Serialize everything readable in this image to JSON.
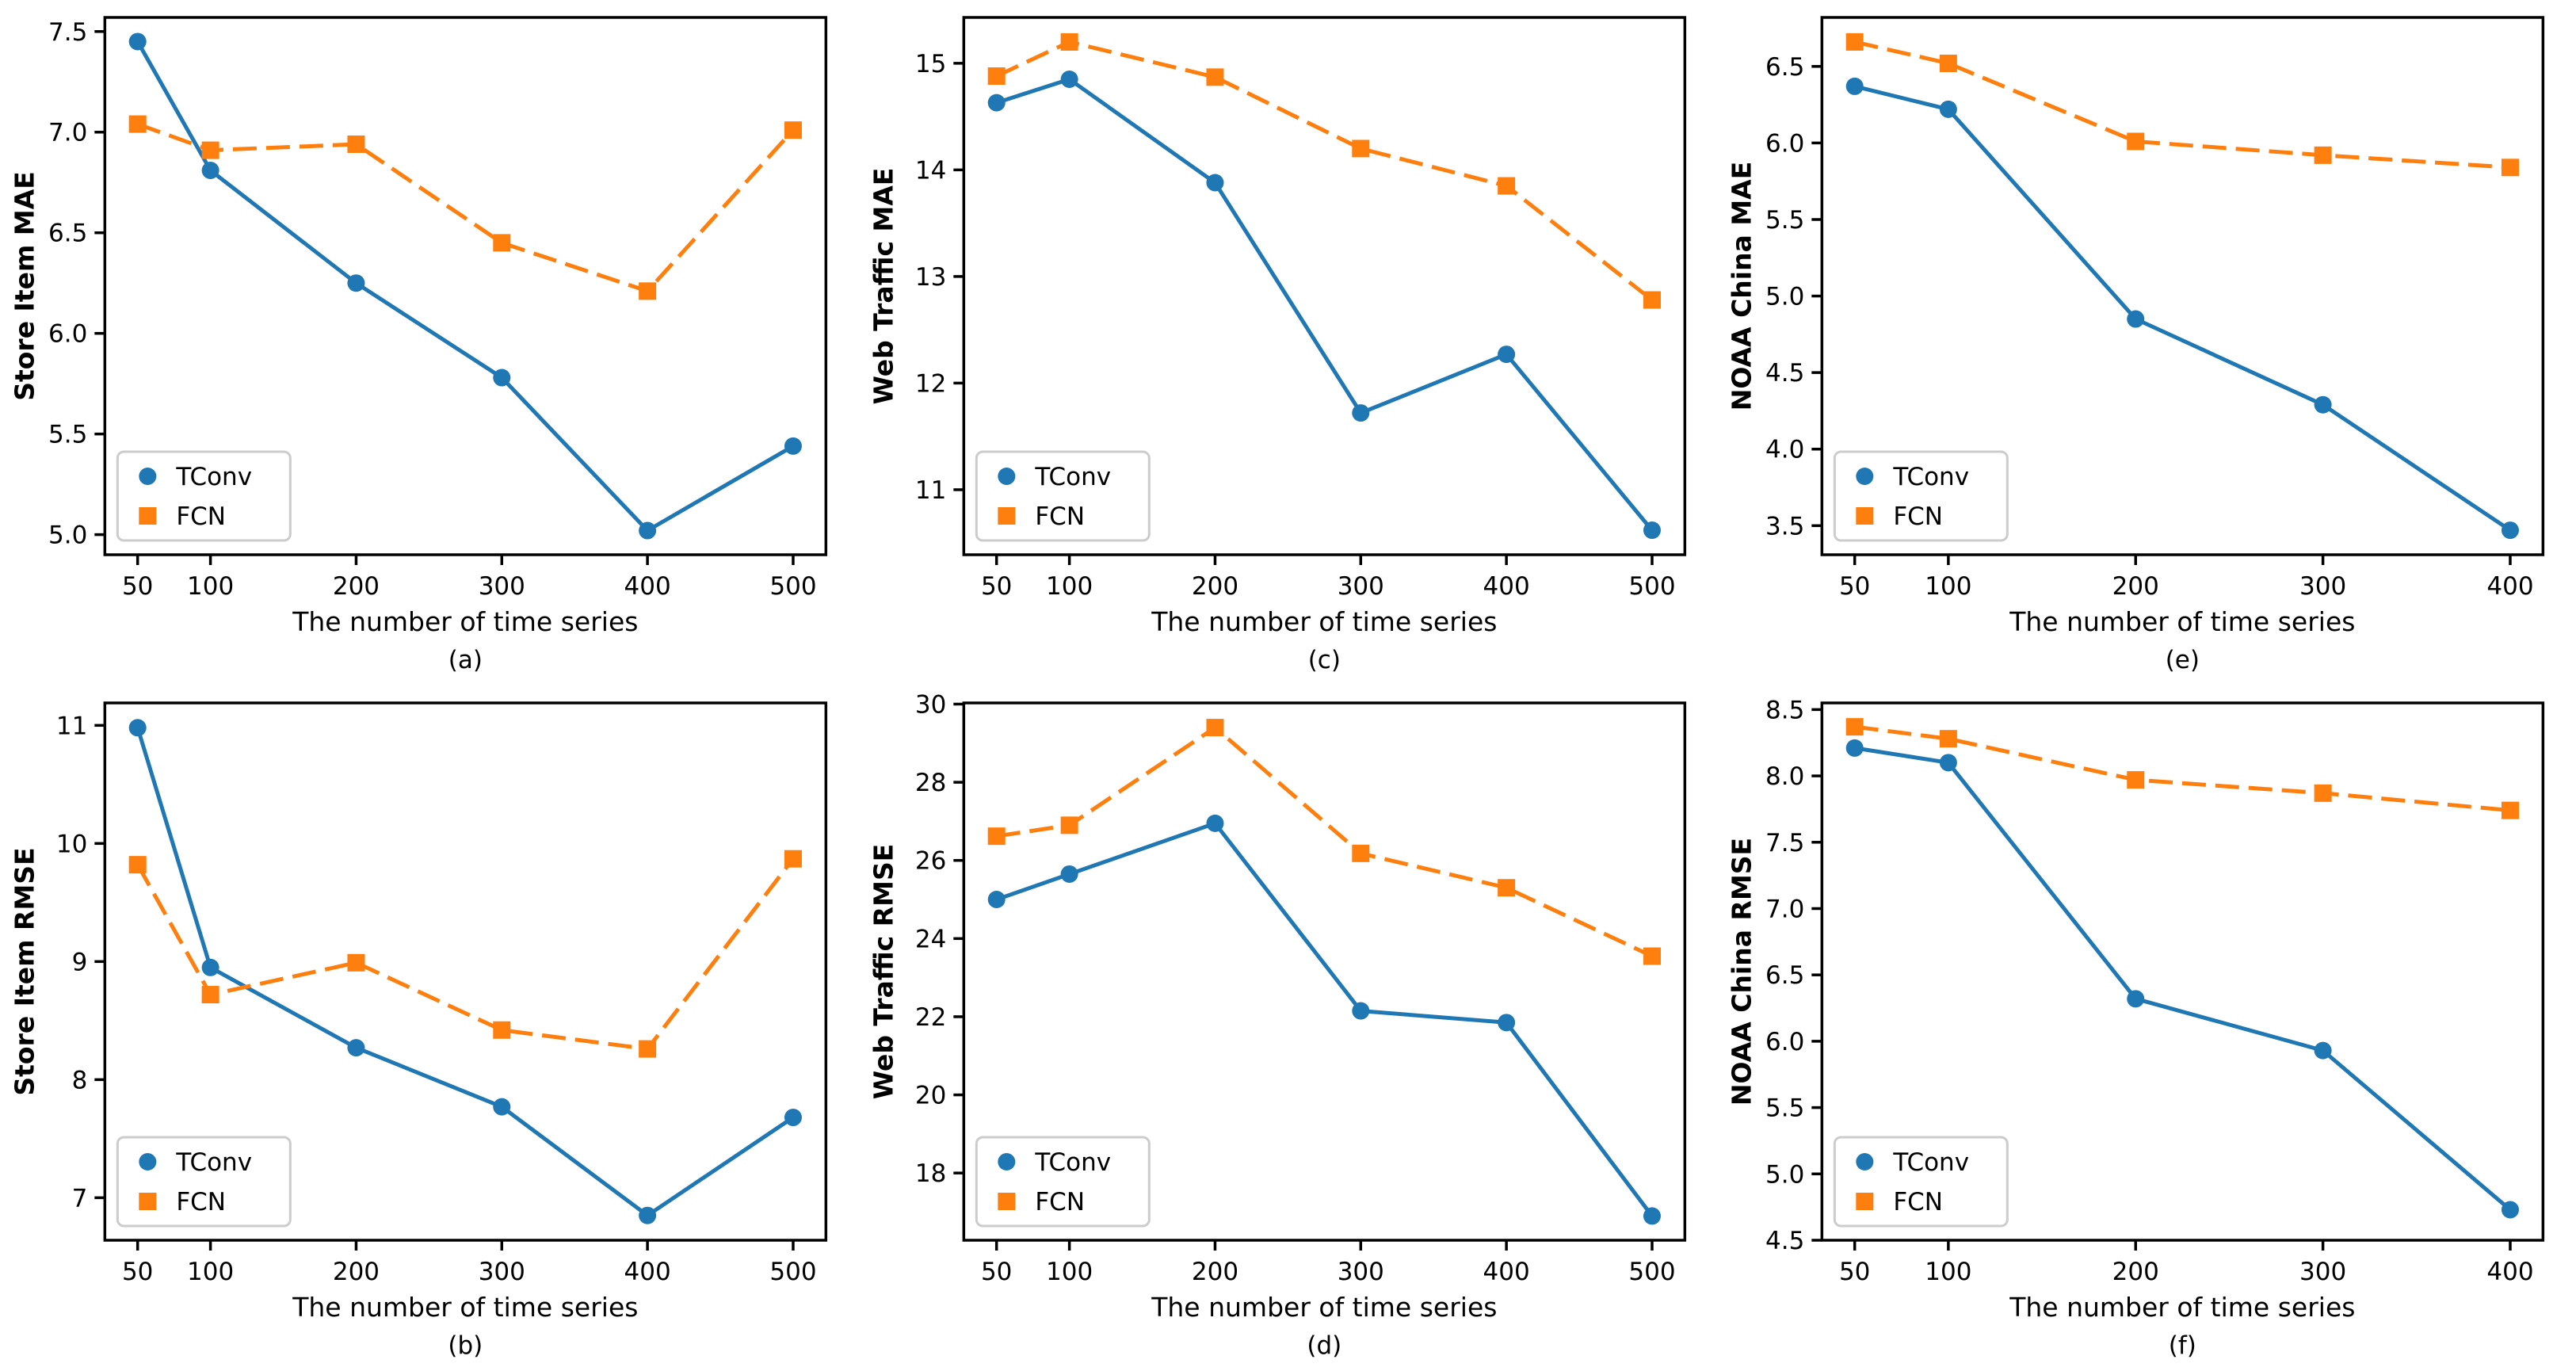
{
  "figure": {
    "background": "#ffffff",
    "series_styles": [
      {
        "name": "TConv",
        "color": "#1f77b4",
        "marker": "circle",
        "linestyle": "solid"
      },
      {
        "name": "FCN",
        "color": "#ff7f0e",
        "marker": "square",
        "linestyle": "dashed"
      }
    ],
    "legend": {
      "labels": [
        "TConv",
        "FCN"
      ],
      "position": "lower left",
      "border_color": "#cccccc"
    }
  },
  "chart_data": [
    {
      "id": "a",
      "type": "line",
      "caption": "(a)",
      "xlabel": "The number of time series",
      "ylabel": "Store Item MAE",
      "x": [
        50,
        100,
        200,
        300,
        400,
        500
      ],
      "xtick_labels": [
        "50",
        "100",
        "200",
        "300",
        "400",
        "500"
      ],
      "ytick_values": [
        5.0,
        5.5,
        6.0,
        6.5,
        7.0,
        7.5
      ],
      "ytick_labels": [
        "5.0",
        "5.5",
        "6.0",
        "6.5",
        "7.0",
        "7.5"
      ],
      "xlim": [
        27.5,
        522.5
      ],
      "ylim": [
        4.9,
        7.57
      ],
      "grid": false,
      "series": [
        {
          "name": "TConv",
          "values": [
            7.45,
            6.81,
            6.25,
            5.78,
            5.02,
            5.44
          ]
        },
        {
          "name": "FCN",
          "values": [
            7.04,
            6.91,
            6.94,
            6.45,
            6.21,
            7.01
          ]
        }
      ]
    },
    {
      "id": "b",
      "type": "line",
      "caption": "(b)",
      "xlabel": "The number of time series",
      "ylabel": "Store Item RMSE",
      "x": [
        50,
        100,
        200,
        300,
        400,
        500
      ],
      "xtick_labels": [
        "50",
        "100",
        "200",
        "300",
        "400",
        "500"
      ],
      "ytick_values": [
        7,
        8,
        9,
        10,
        11
      ],
      "ytick_labels": [
        "7",
        "8",
        "9",
        "10",
        "11"
      ],
      "xlim": [
        27.5,
        522.5
      ],
      "ylim": [
        6.64,
        11.19
      ],
      "grid": false,
      "series": [
        {
          "name": "TConv",
          "values": [
            10.98,
            8.95,
            8.27,
            7.77,
            6.85,
            7.68
          ]
        },
        {
          "name": "FCN",
          "values": [
            9.82,
            8.72,
            8.99,
            8.42,
            8.26,
            9.87
          ]
        }
      ]
    },
    {
      "id": "c",
      "type": "line",
      "caption": "(c)",
      "xlabel": "The number of time series",
      "ylabel": "Web Traffic MAE",
      "x": [
        50,
        100,
        200,
        300,
        400,
        500
      ],
      "xtick_labels": [
        "50",
        "100",
        "200",
        "300",
        "400",
        "500"
      ],
      "ytick_values": [
        11,
        12,
        13,
        14,
        15
      ],
      "ytick_labels": [
        "11",
        "12",
        "13",
        "14",
        "15"
      ],
      "xlim": [
        27.5,
        522.5
      ],
      "ylim": [
        10.39,
        15.43
      ],
      "grid": false,
      "series": [
        {
          "name": "TConv",
          "values": [
            14.63,
            14.85,
            13.88,
            11.72,
            12.27,
            10.62
          ]
        },
        {
          "name": "FCN",
          "values": [
            14.88,
            15.2,
            14.87,
            14.2,
            13.85,
            12.78
          ]
        }
      ]
    },
    {
      "id": "d",
      "type": "line",
      "caption": "(d)",
      "xlabel": "The number of time series",
      "ylabel": "Web Traffic RMSE",
      "x": [
        50,
        100,
        200,
        300,
        400,
        500
      ],
      "xtick_labels": [
        "50",
        "100",
        "200",
        "300",
        "400",
        "500"
      ],
      "ytick_values": [
        18,
        20,
        22,
        24,
        26,
        28,
        30
      ],
      "ytick_labels": [
        "18",
        "20",
        "22",
        "24",
        "26",
        "28",
        "30"
      ],
      "xlim": [
        27.5,
        522.5
      ],
      "ylim": [
        16.28,
        30.03
      ],
      "grid": false,
      "series": [
        {
          "name": "TConv",
          "values": [
            25.0,
            25.65,
            26.95,
            22.15,
            21.85,
            16.9
          ]
        },
        {
          "name": "FCN",
          "values": [
            26.62,
            26.9,
            29.4,
            26.18,
            25.3,
            23.55
          ]
        }
      ]
    },
    {
      "id": "e",
      "type": "line",
      "caption": "(e)",
      "xlabel": "The number of time series",
      "ylabel": "NOAA China MAE",
      "x": [
        50,
        100,
        200,
        300,
        400
      ],
      "xtick_labels": [
        "50",
        "100",
        "200",
        "300",
        "400"
      ],
      "ytick_values": [
        3.5,
        4.0,
        4.5,
        5.0,
        5.5,
        6.0,
        6.5
      ],
      "ytick_labels": [
        "3.5",
        "4.0",
        "4.5",
        "5.0",
        "5.5",
        "6.0",
        "6.5"
      ],
      "xlim": [
        32.5,
        417.5
      ],
      "ylim": [
        3.31,
        6.82
      ],
      "grid": false,
      "series": [
        {
          "name": "TConv",
          "values": [
            6.37,
            6.22,
            4.85,
            4.29,
            3.47
          ]
        },
        {
          "name": "FCN",
          "values": [
            6.66,
            6.52,
            6.01,
            5.92,
            5.84
          ]
        }
      ]
    },
    {
      "id": "f",
      "type": "line",
      "caption": "(f)",
      "xlabel": "The number of time series",
      "ylabel": "NOAA China RMSE",
      "x": [
        50,
        100,
        200,
        300,
        400
      ],
      "xtick_labels": [
        "50",
        "100",
        "200",
        "300",
        "400"
      ],
      "ytick_values": [
        4.5,
        5.0,
        5.5,
        6.0,
        6.5,
        7.0,
        7.5,
        8.0,
        8.5
      ],
      "ytick_labels": [
        "4.5",
        "5.0",
        "5.5",
        "6.0",
        "6.5",
        "7.0",
        "7.5",
        "8.0",
        "8.5"
      ],
      "xlim": [
        32.5,
        417.5
      ],
      "ylim": [
        4.5,
        8.55
      ],
      "grid": false,
      "series": [
        {
          "name": "TConv",
          "values": [
            8.21,
            8.1,
            6.32,
            5.93,
            4.73
          ]
        },
        {
          "name": "FCN",
          "values": [
            8.37,
            8.28,
            7.97,
            7.87,
            7.74
          ]
        }
      ]
    }
  ]
}
